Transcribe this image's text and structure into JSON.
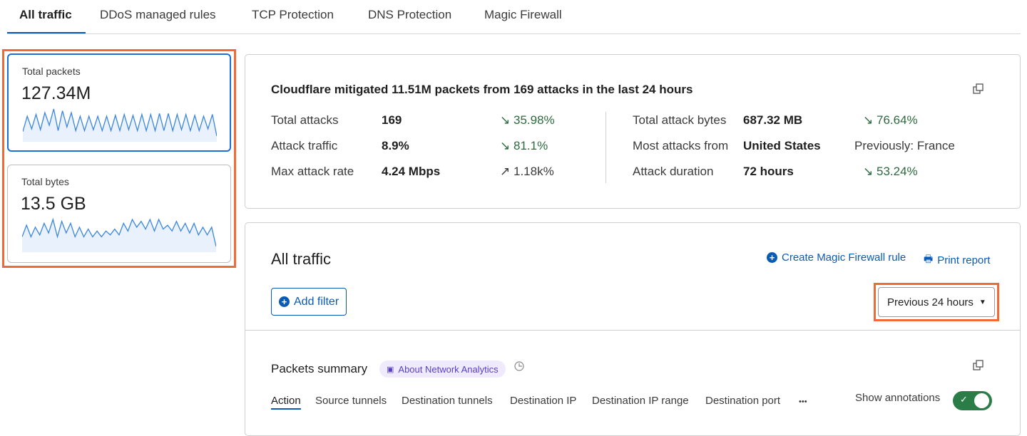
{
  "tabs": [
    {
      "label": "All traffic",
      "active": true
    },
    {
      "label": "DDoS managed rules"
    },
    {
      "label": "TCP Protection"
    },
    {
      "label": "DNS Protection"
    },
    {
      "label": "Magic Firewall"
    }
  ],
  "metrics": [
    {
      "label": "Total packets",
      "value": "127.34M",
      "selected": true,
      "sparkline": [
        5,
        22,
        8,
        24,
        7,
        26,
        12,
        30,
        6,
        28,
        10,
        26,
        6,
        22,
        6,
        22,
        7,
        22,
        6,
        22,
        6,
        23,
        6,
        24,
        7,
        23,
        6,
        24,
        6,
        24,
        6,
        25,
        6,
        25,
        6,
        24,
        7,
        24,
        6,
        23,
        6,
        22,
        8,
        24,
        0
      ]
    },
    {
      "label": "Total bytes",
      "value": "13.5 GB",
      "selected": false,
      "sparkline": [
        10,
        22,
        10,
        20,
        12,
        24,
        14,
        28,
        10,
        26,
        14,
        24,
        10,
        20,
        10,
        18,
        10,
        16,
        10,
        16,
        12,
        18,
        12,
        24,
        16,
        28,
        20,
        26,
        18,
        28,
        16,
        28,
        18,
        22,
        16,
        26,
        16,
        24,
        14,
        24,
        12,
        20,
        12,
        20,
        0
      ]
    }
  ],
  "summary": {
    "headline": "Cloudflare mitigated 11.51M packets from 169 attacks in the last 24 hours",
    "left": [
      {
        "label": "Total attacks",
        "value": "169",
        "change": "35.98%",
        "direction": "down"
      },
      {
        "label": "Attack traffic",
        "value": "8.9%",
        "change": "81.1%",
        "direction": "down"
      },
      {
        "label": "Max attack rate",
        "value": "4.24 Mbps",
        "change": "1.18k%",
        "direction": "up"
      }
    ],
    "right": [
      {
        "label": "Total attack bytes",
        "value": "687.32 MB",
        "change": "76.64%",
        "direction": "down"
      },
      {
        "label": "Most attacks from",
        "value": "United States",
        "note": "Previously: France"
      },
      {
        "label": "Attack duration",
        "value": "72 hours",
        "change": "53.24%",
        "direction": "down"
      }
    ],
    "arrow_down": "↘",
    "arrow_up": "↗"
  },
  "traffic": {
    "title": "All traffic",
    "create_rule": "Create Magic Firewall rule",
    "print_report": "Print report",
    "add_filter": "Add filter",
    "time_range": "Previous 24 hours",
    "packets_summary": "Packets summary",
    "about_badge": "About Network Analytics",
    "sub_tabs": [
      "Action",
      "Source tunnels",
      "Destination tunnels",
      "Destination IP",
      "Destination IP range",
      "Destination port"
    ],
    "more": "•••",
    "show_annotations": "Show annotations",
    "annotations_on": true
  },
  "colors": {
    "accent": "#0a5bb5",
    "highlight": "#f06a35",
    "positive": "#2d6a3f",
    "toggle": "#2a7d46"
  }
}
